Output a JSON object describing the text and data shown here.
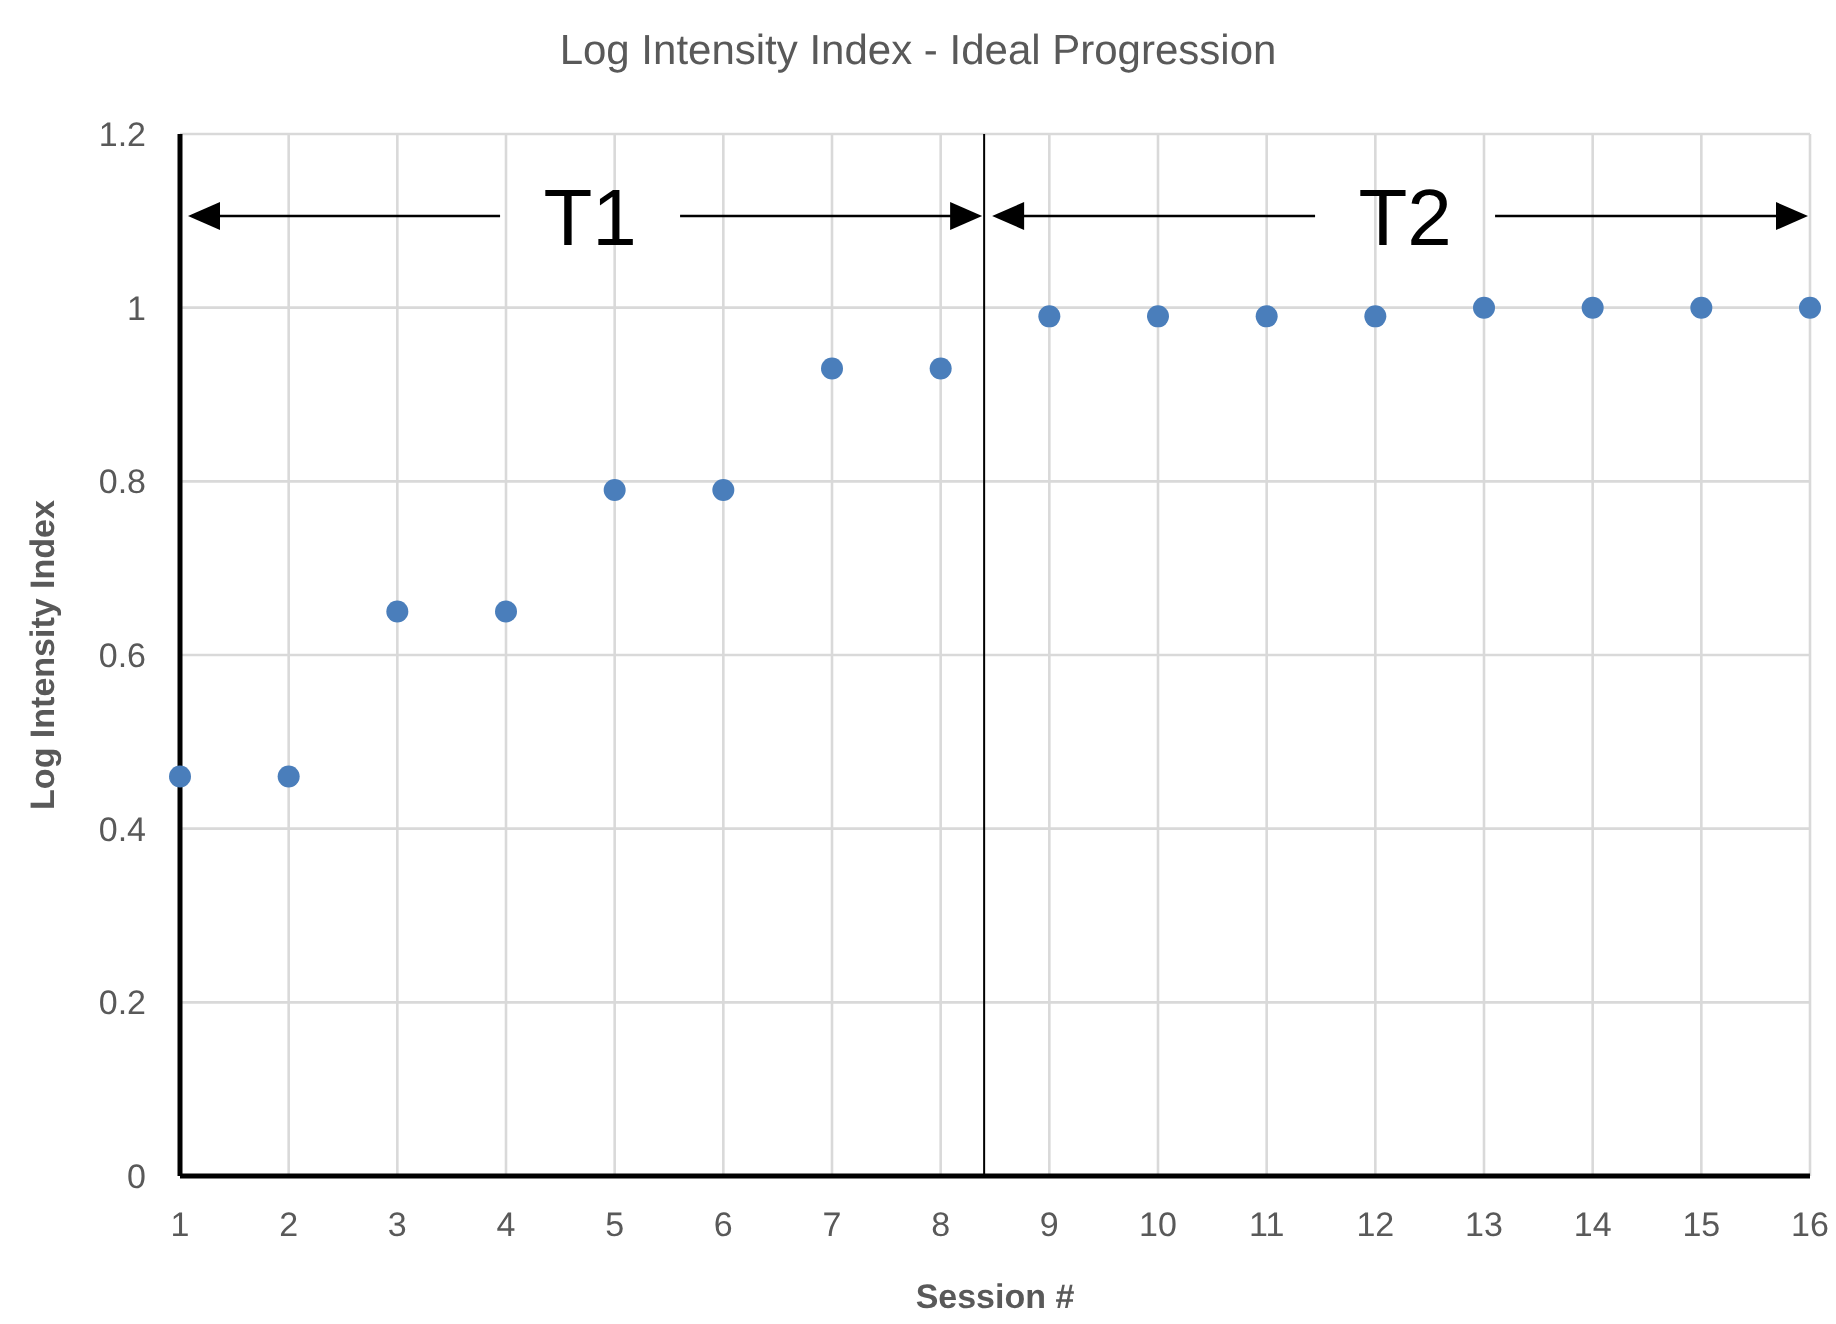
{
  "chart_data": {
    "type": "scatter",
    "title": "Log Intensity Index - Ideal Progression",
    "xlabel": "Session #",
    "ylabel": "Log Intensity Index",
    "x": [
      1,
      2,
      3,
      4,
      5,
      6,
      7,
      8,
      9,
      10,
      11,
      12,
      13,
      14,
      15,
      16
    ],
    "series": [
      {
        "color": "#4a7ebb",
        "values": [
          0.46,
          0.46,
          0.65,
          0.65,
          0.79,
          0.79,
          0.93,
          0.93,
          0.99,
          0.99,
          0.99,
          0.99,
          1,
          1,
          1,
          1
        ]
      }
    ],
    "xlim": [
      1,
      16
    ],
    "xticks": [
      1,
      2,
      3,
      4,
      5,
      6,
      7,
      8,
      9,
      10,
      11,
      12,
      13,
      14,
      15,
      16
    ],
    "ylim": [
      0,
      1.2
    ],
    "yticks": [
      0,
      0.2,
      0.4,
      0.6,
      0.8,
      1,
      1.2
    ],
    "grid": true,
    "marker": "circle",
    "ref_lines": [
      {
        "axis": "x",
        "value": 8.4,
        "color": "#000000"
      }
    ],
    "annotations": [
      "T1",
      "T2"
    ]
  }
}
